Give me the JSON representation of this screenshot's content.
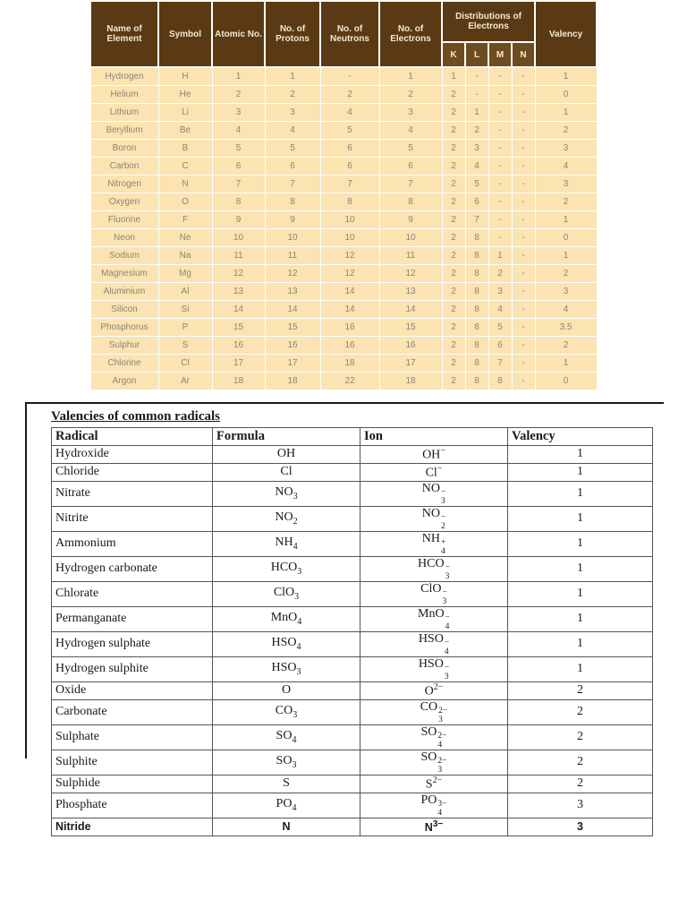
{
  "colors": {
    "header_brown": "#5a3a14",
    "shell_header_brown": "#6e4c20",
    "header_text": "#f2e8cf",
    "body_cream": "#fbe3b2",
    "body_text": "#8d8577",
    "radicals_text": "#1a1a1a"
  },
  "elements_table": {
    "headers": {
      "name": "Name of Element",
      "symbol": "Symbol",
      "atomic_no": "Atomic No.",
      "protons": "No. of Protons",
      "neutrons": "No. of Neutrons",
      "electrons": "No. of Electrons",
      "distribution": "Distributions of Electrons",
      "valency": "Valency",
      "shells": [
        "K",
        "L",
        "M",
        "N"
      ]
    },
    "rows": [
      [
        "Hydrogen",
        "H",
        "1",
        "1",
        "-",
        "1",
        "1",
        "-",
        "-",
        "-",
        "1"
      ],
      [
        "Helium",
        "He",
        "2",
        "2",
        "2",
        "2",
        "2",
        "-",
        "-",
        "-",
        "0"
      ],
      [
        "Lithium",
        "Li",
        "3",
        "3",
        "4",
        "3",
        "2",
        "1",
        "-",
        "-",
        "1"
      ],
      [
        "Beryllium",
        "Be",
        "4",
        "4",
        "5",
        "4",
        "2",
        "2",
        "-",
        "-",
        "2"
      ],
      [
        "Boron",
        "B",
        "5",
        "5",
        "6",
        "5",
        "2",
        "3",
        "-",
        "-",
        "3"
      ],
      [
        "Carbon",
        "C",
        "6",
        "6",
        "6",
        "6",
        "2",
        "4",
        "-",
        "-",
        "4"
      ],
      [
        "Nitrogen",
        "N",
        "7",
        "7",
        "7",
        "7",
        "2",
        "5",
        "-",
        "-",
        "3"
      ],
      [
        "Oxygen",
        "O",
        "8",
        "8",
        "8",
        "8",
        "2",
        "6",
        "-",
        "-",
        "2"
      ],
      [
        "Fluorine",
        "F",
        "9",
        "9",
        "10",
        "9",
        "2",
        "7",
        "-",
        "-",
        "1"
      ],
      [
        "Neon",
        "Ne",
        "10",
        "10",
        "10",
        "10",
        "2",
        "8",
        "-",
        "-",
        "0"
      ],
      [
        "Sodium",
        "Na",
        "11",
        "11",
        "12",
        "11",
        "2",
        "8",
        "1",
        "-",
        "1"
      ],
      [
        "Magnesium",
        "Mg",
        "12",
        "12",
        "12",
        "12",
        "2",
        "8",
        "2",
        "-",
        "2"
      ],
      [
        "Aluminium",
        "Al",
        "13",
        "13",
        "14",
        "13",
        "2",
        "8",
        "3",
        "-",
        "3"
      ],
      [
        "Silicon",
        "Si",
        "14",
        "14",
        "14",
        "14",
        "2",
        "8",
        "4",
        "-",
        "4"
      ],
      [
        "Phosphorus",
        "P",
        "15",
        "15",
        "16",
        "15",
        "2",
        "8",
        "5",
        "-",
        "3.5"
      ],
      [
        "Sulphur",
        "S",
        "16",
        "16",
        "16",
        "16",
        "2",
        "8",
        "6",
        "-",
        "2"
      ],
      [
        "Chlorine",
        "Cl",
        "17",
        "17",
        "18",
        "17",
        "2",
        "8",
        "7",
        "-",
        "1"
      ],
      [
        "Argon",
        "Ar",
        "18",
        "18",
        "22",
        "18",
        "2",
        "8",
        "8",
        "-",
        "0"
      ]
    ]
  },
  "radicals_table": {
    "title": "Valencies of common radicals",
    "headers": [
      "Radical",
      "Formula",
      "Ion",
      "Valency"
    ],
    "rows": [
      {
        "radical": "Hydroxide",
        "formula": {
          "base": "OH",
          "sub": ""
        },
        "ion": {
          "base": "OH",
          "sub": "",
          "sup": "−"
        },
        "valency": "1",
        "emphasis": false
      },
      {
        "radical": "Chloride",
        "formula": {
          "base": "Cl",
          "sub": ""
        },
        "ion": {
          "base": "Cl",
          "sub": "",
          "sup": "−"
        },
        "valency": "1",
        "emphasis": false
      },
      {
        "radical": "Nitrate",
        "formula": {
          "base": "NO",
          "sub": "3"
        },
        "ion": {
          "base": "NO",
          "sub": "3",
          "sup": "−"
        },
        "valency": "1",
        "emphasis": false
      },
      {
        "radical": "Nitrite",
        "formula": {
          "base": "NO",
          "sub": "2"
        },
        "ion": {
          "base": "NO",
          "sub": "2",
          "sup": "−"
        },
        "valency": "1",
        "emphasis": false
      },
      {
        "radical": "Ammonium",
        "formula": {
          "base": "NH",
          "sub": "4"
        },
        "ion": {
          "base": "NH",
          "sub": "4",
          "sup": "+"
        },
        "valency": "1",
        "emphasis": false
      },
      {
        "radical": "Hydrogen carbonate",
        "formula": {
          "base": "HCO",
          "sub": "3"
        },
        "ion": {
          "base": "HCO",
          "sub": "3",
          "sup": "−"
        },
        "valency": "1",
        "emphasis": false
      },
      {
        "radical": "Chlorate",
        "formula": {
          "base": "ClO",
          "sub": "3"
        },
        "ion": {
          "base": "ClO",
          "sub": "3",
          "sup": "−"
        },
        "valency": "1",
        "emphasis": false
      },
      {
        "radical": "Permanganate",
        "formula": {
          "base": "MnO",
          "sub": "4"
        },
        "ion": {
          "base": "MnO",
          "sub": "4",
          "sup": "−"
        },
        "valency": "1",
        "emphasis": false
      },
      {
        "radical": "Hydrogen sulphate",
        "formula": {
          "base": "HSO",
          "sub": "4"
        },
        "ion": {
          "base": "HSO",
          "sub": "4",
          "sup": "−"
        },
        "valency": "1",
        "emphasis": false
      },
      {
        "radical": "Hydrogen sulphite",
        "formula": {
          "base": "HSO",
          "sub": "3"
        },
        "ion": {
          "base": "HSO",
          "sub": "3",
          "sup": "−"
        },
        "valency": "1",
        "emphasis": false
      },
      {
        "radical": "Oxide",
        "formula": {
          "base": "O",
          "sub": ""
        },
        "ion": {
          "base": "O",
          "sub": "",
          "sup": "2−"
        },
        "valency": "2",
        "emphasis": false
      },
      {
        "radical": "Carbonate",
        "formula": {
          "base": "CO",
          "sub": "3"
        },
        "ion": {
          "base": "CO",
          "sub": "3",
          "sup": "2−"
        },
        "valency": "2",
        "emphasis": false
      },
      {
        "radical": "Sulphate",
        "formula": {
          "base": "SO",
          "sub": "4"
        },
        "ion": {
          "base": "SO",
          "sub": "4",
          "sup": "2−"
        },
        "valency": "2",
        "emphasis": false
      },
      {
        "radical": "Sulphite",
        "formula": {
          "base": "SO",
          "sub": "3"
        },
        "ion": {
          "base": "SO",
          "sub": "3",
          "sup": "2−"
        },
        "valency": "2",
        "emphasis": false
      },
      {
        "radical": "Sulphide",
        "formula": {
          "base": "S",
          "sub": ""
        },
        "ion": {
          "base": "S",
          "sub": "",
          "sup": "2−"
        },
        "valency": "2",
        "emphasis": false
      },
      {
        "radical": "Phosphate",
        "formula": {
          "base": "PO",
          "sub": "4"
        },
        "ion": {
          "base": "PO",
          "sub": "4",
          "sup": "3−"
        },
        "valency": "3",
        "emphasis": false
      },
      {
        "radical": "Nitride",
        "formula": {
          "base": "N",
          "sub": ""
        },
        "ion": {
          "base": "N",
          "sub": "",
          "sup": "3−"
        },
        "valency": "3",
        "emphasis": true
      }
    ]
  }
}
